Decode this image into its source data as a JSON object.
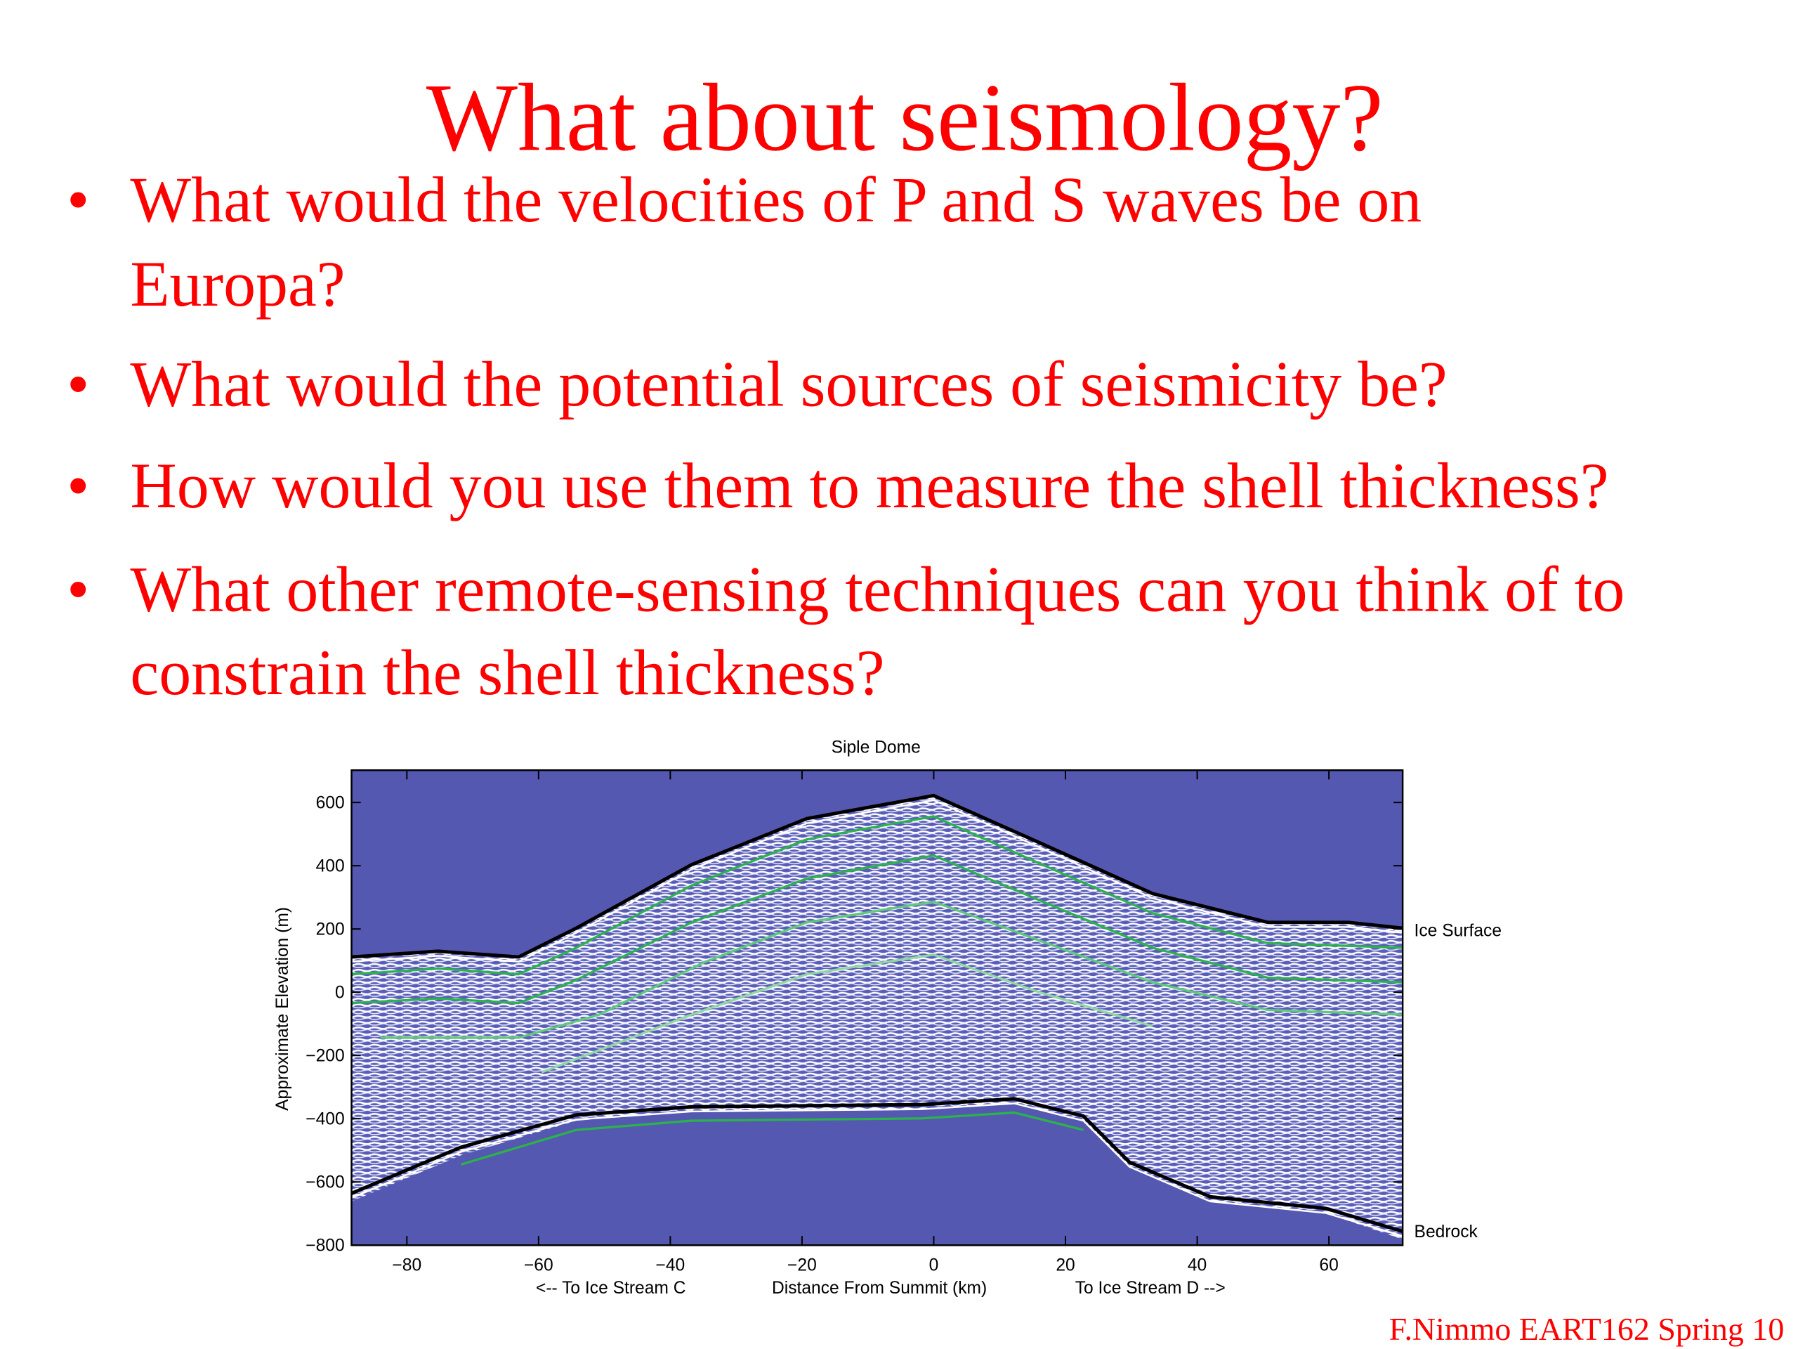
{
  "slide": {
    "title": "What about seismology?",
    "bullets": [
      [
        "What would the velocities of P and S waves be on",
        "Europa?"
      ],
      [
        "What would the potential sources of seismicity be?"
      ],
      [
        "How would you use them to measure the shell thickness?"
      ],
      [
        "What other remote-sensing techniques can you think of to",
        "constrain the shell thickness?"
      ]
    ],
    "figure": {
      "title": "Siple Dome",
      "y_label": "Approximate Elevation (m)",
      "x_label": "Distance From Summit (km)",
      "x_left_note": "<-- To Ice Stream C",
      "x_right_note": "To Ice Stream D -->",
      "yticks": [
        "600",
        "400",
        "200",
        "0",
        "−200",
        "−400",
        "−600",
        "−800"
      ],
      "xticks": [
        "−80",
        "−60",
        "−40",
        "−20",
        "0",
        "20",
        "40",
        "60"
      ],
      "annotations": [
        "Ice Surface",
        "Bedrock"
      ]
    },
    "footer": "F.Nimmo EART162 Spring 10"
  }
}
